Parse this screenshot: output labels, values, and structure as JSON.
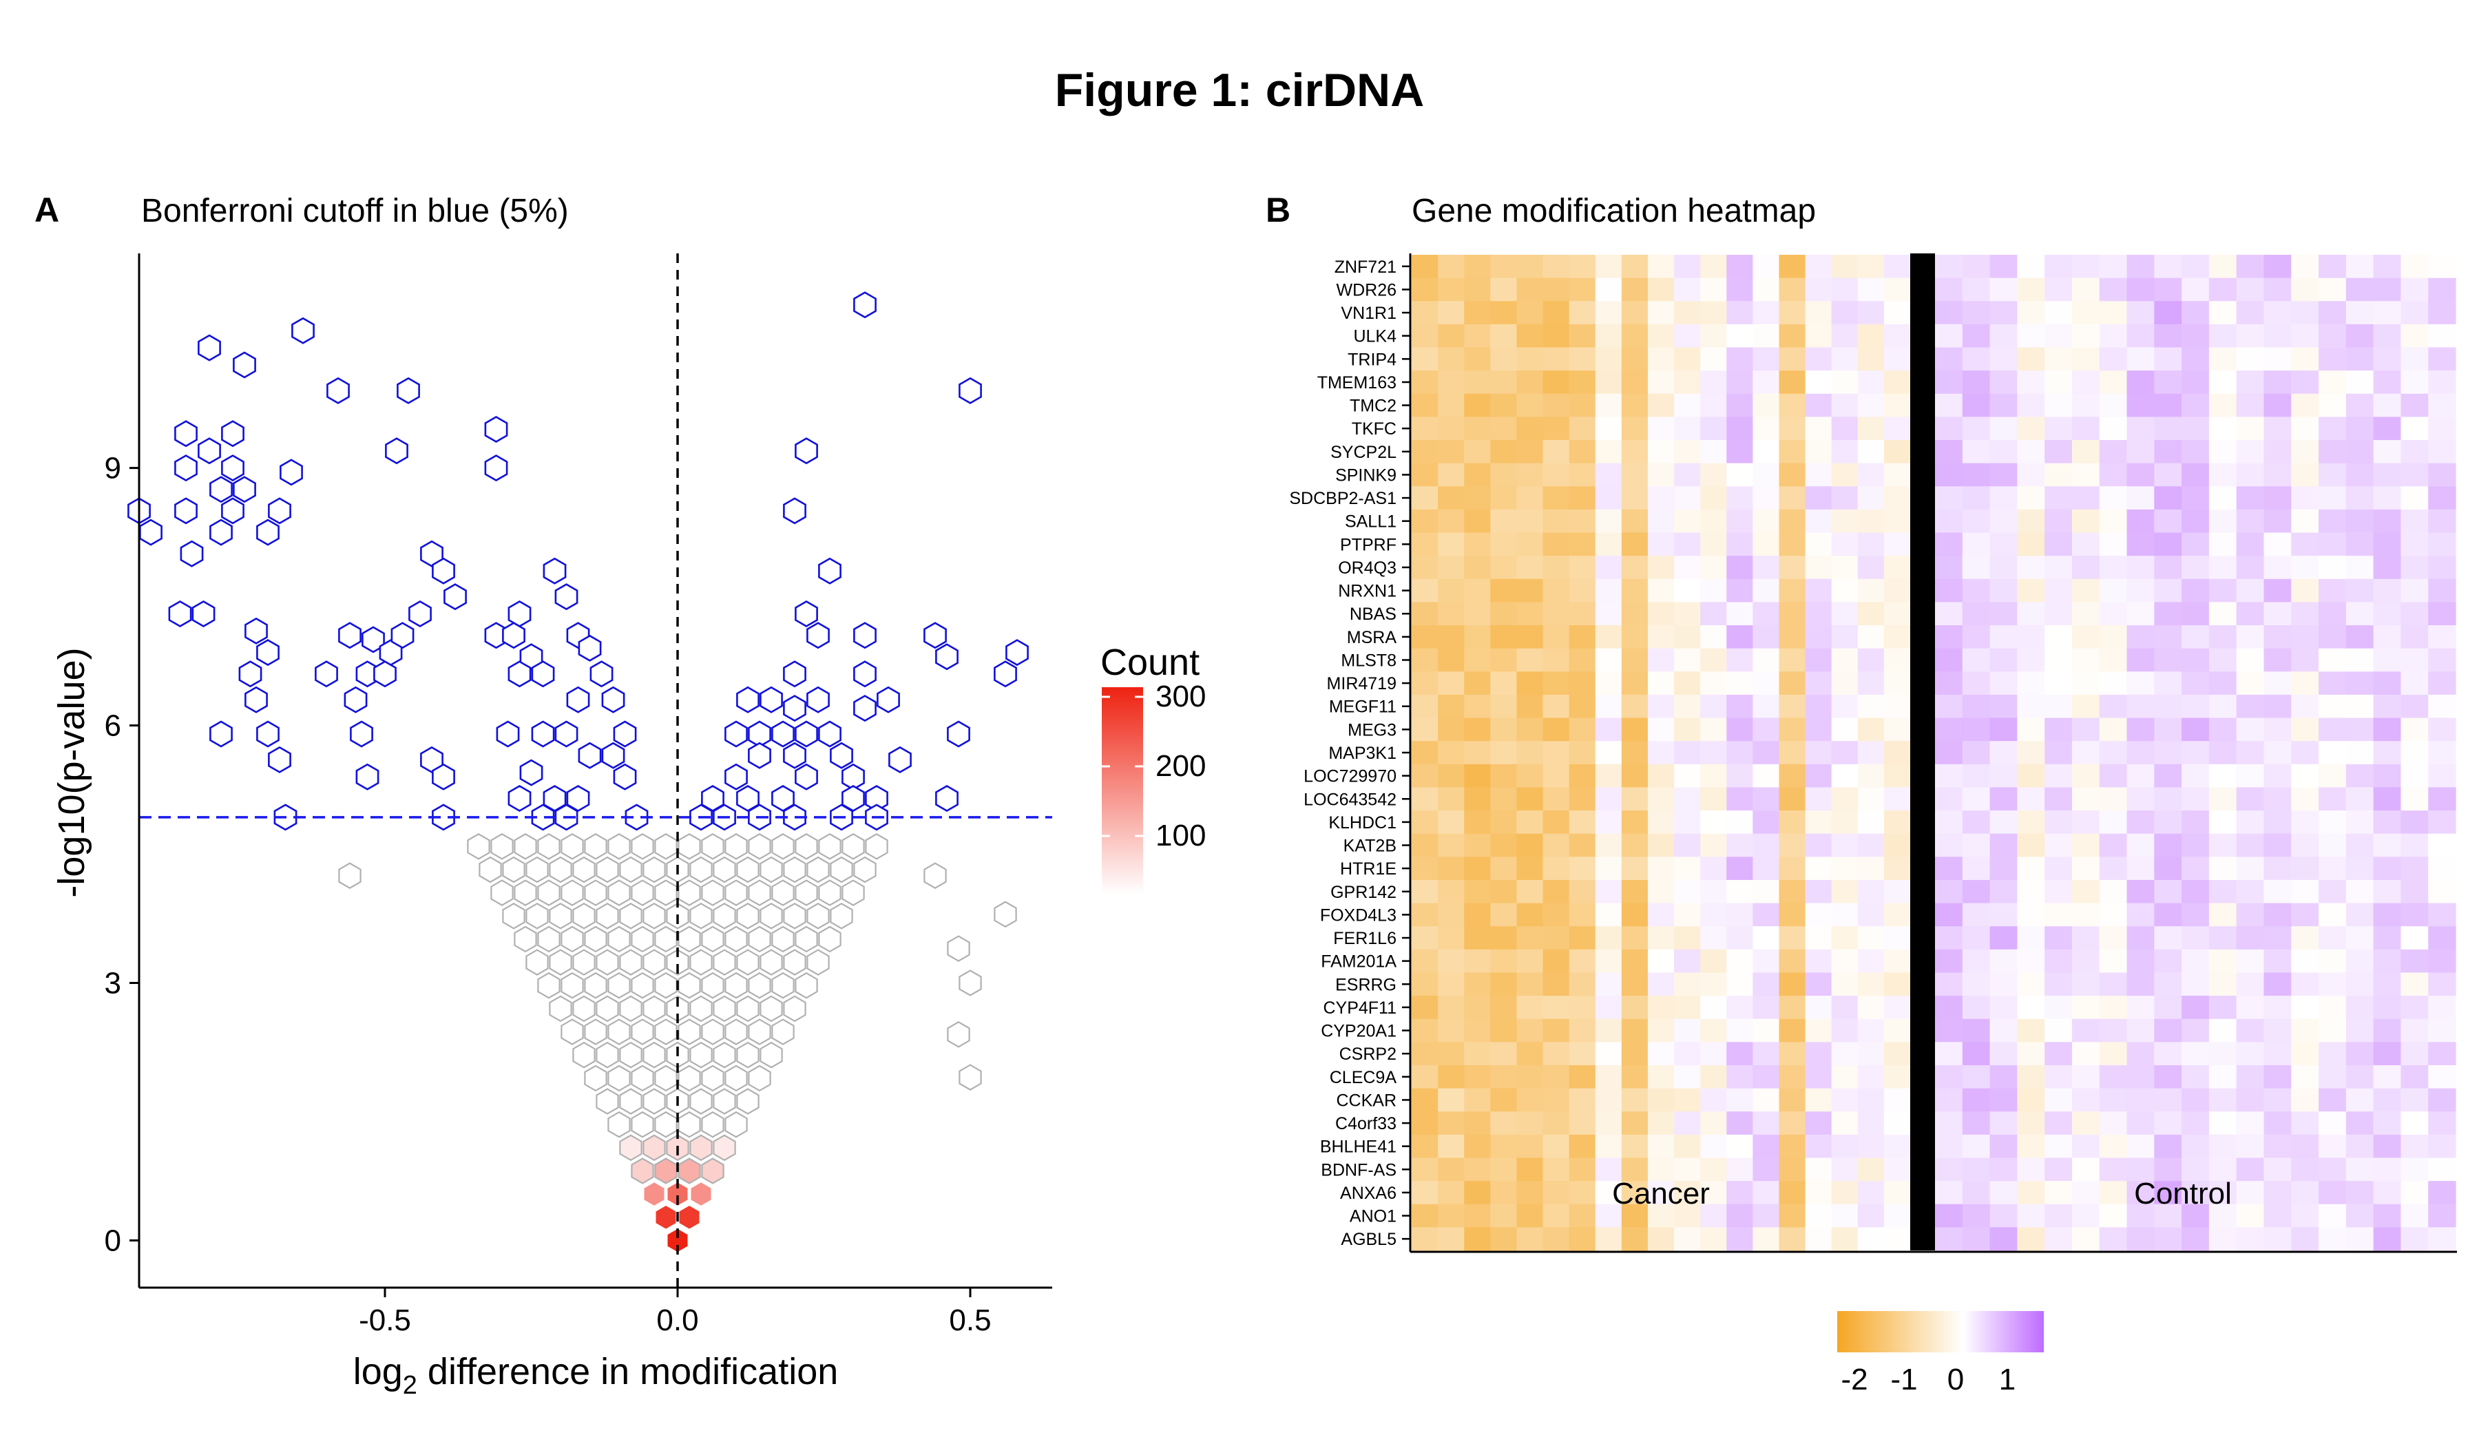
{
  "figure_title": "Figure 1: cirDNA",
  "panel_a": {
    "tag": "A",
    "subtitle": "Bonferroni cutoff in blue (5%)",
    "xlabel_main": "log",
    "xlabel_sub": "2",
    "xlabel_rest": " difference in modification",
    "ylabel": "-log10(p-value)",
    "legend_title": "Count",
    "legend_ticks": [
      "300",
      "200",
      "100"
    ]
  },
  "panel_b": {
    "tag": "B",
    "subtitle": "Gene modification heatmap",
    "group_labels": [
      "Cancer",
      "Control"
    ],
    "colorbar_ticks": [
      "-2",
      "-1",
      "0",
      "1"
    ]
  },
  "colors": {
    "significant": "#1010dd",
    "non_significant": "#b0b0b0",
    "count_high": "#ee2211",
    "count_low": "#ffffff",
    "cutoff_line": "#1a1aee",
    "heat_low": "#f5a623",
    "heat_mid": "#ffffff",
    "heat_high": "#bf6bff",
    "divider": "#000000"
  },
  "chart_data": [
    {
      "type": "scatter",
      "subtype": "hexbin",
      "title": "Bonferroni cutoff in blue (5%)",
      "xlabel": "log2 difference in modification",
      "ylabel": "-log10(p-value)",
      "xlim": [
        -0.92,
        0.64
      ],
      "ylim": [
        -0.55,
        11.5
      ],
      "xticks": [
        -0.5,
        0.0,
        0.5
      ],
      "yticks": [
        0,
        3,
        6,
        9
      ],
      "cutoff_y": 4.93,
      "vline_x": 0.0,
      "grid": false,
      "legend": "right",
      "count_range": [
        1,
        300
      ],
      "significant_points": [
        [
          -0.92,
          8.5
        ],
        [
          -0.9,
          8.25
        ],
        [
          -0.85,
          7.3
        ],
        [
          -0.81,
          7.3
        ],
        [
          -0.83,
          8.0
        ],
        [
          -0.84,
          8.5
        ],
        [
          -0.84,
          9.0
        ],
        [
          -0.84,
          9.4
        ],
        [
          -0.8,
          10.4
        ],
        [
          -0.8,
          9.2
        ],
        [
          -0.78,
          8.75
        ],
        [
          -0.78,
          8.25
        ],
        [
          -0.76,
          8.5
        ],
        [
          -0.76,
          9.0
        ],
        [
          -0.76,
          9.4
        ],
        [
          -0.74,
          8.75
        ],
        [
          -0.74,
          10.2
        ],
        [
          -0.72,
          7.1
        ],
        [
          -0.7,
          8.25
        ],
        [
          -0.68,
          8.5
        ],
        [
          -0.66,
          8.95
        ],
        [
          -0.64,
          10.6
        ],
        [
          -0.58,
          9.9
        ],
        [
          -0.56,
          7.05
        ],
        [
          -0.6,
          6.6
        ],
        [
          -0.55,
          6.3
        ],
        [
          -0.52,
          7.0
        ],
        [
          -0.49,
          6.85
        ],
        [
          -0.48,
          9.2
        ],
        [
          -0.46,
          9.9
        ],
        [
          -0.44,
          7.3
        ],
        [
          -0.42,
          8.0
        ],
        [
          -0.4,
          7.8
        ],
        [
          -0.38,
          7.5
        ],
        [
          -0.42,
          5.6
        ],
        [
          -0.4,
          5.4
        ],
        [
          -0.4,
          4.93
        ],
        [
          -0.31,
          9.45
        ],
        [
          -0.31,
          9.0
        ],
        [
          -0.31,
          7.05
        ],
        [
          -0.29,
          5.9
        ],
        [
          -0.27,
          7.3
        ],
        [
          -0.25,
          6.8
        ],
        [
          -0.23,
          6.6
        ],
        [
          -0.21,
          7.8
        ],
        [
          -0.19,
          7.5
        ],
        [
          -0.17,
          7.05
        ],
        [
          -0.17,
          6.3
        ],
        [
          -0.15,
          6.9
        ],
        [
          -0.13,
          6.6
        ],
        [
          -0.11,
          6.3
        ],
        [
          -0.09,
          5.9
        ],
        [
          -0.11,
          5.65
        ],
        [
          -0.15,
          5.65
        ],
        [
          -0.19,
          5.9
        ],
        [
          -0.23,
          5.9
        ],
        [
          -0.25,
          5.45
        ],
        [
          -0.27,
          5.15
        ],
        [
          -0.21,
          5.15
        ],
        [
          -0.17,
          5.15
        ],
        [
          -0.09,
          5.4
        ],
        [
          -0.07,
          4.93
        ],
        [
          -0.19,
          4.93
        ],
        [
          -0.23,
          4.93
        ],
        [
          -0.73,
          6.6
        ],
        [
          -0.72,
          6.3
        ],
        [
          -0.7,
          5.9
        ],
        [
          -0.68,
          5.6
        ],
        [
          -0.67,
          4.93
        ],
        [
          -0.78,
          5.9
        ],
        [
          -0.54,
          5.9
        ],
        [
          -0.53,
          5.4
        ],
        [
          -0.7,
          6.85
        ],
        [
          -0.53,
          6.6
        ],
        [
          -0.5,
          6.6
        ],
        [
          -0.47,
          7.05
        ],
        [
          -0.28,
          7.05
        ],
        [
          -0.27,
          6.6
        ],
        [
          0.32,
          10.9
        ],
        [
          0.5,
          9.9
        ],
        [
          0.22,
          9.2
        ],
        [
          0.2,
          8.5
        ],
        [
          0.26,
          7.8
        ],
        [
          0.22,
          7.3
        ],
        [
          0.24,
          7.05
        ],
        [
          0.32,
          7.05
        ],
        [
          0.44,
          7.05
        ],
        [
          0.46,
          6.8
        ],
        [
          0.56,
          6.6
        ],
        [
          0.58,
          6.85
        ],
        [
          0.2,
          6.6
        ],
        [
          0.16,
          6.3
        ],
        [
          0.12,
          6.3
        ],
        [
          0.1,
          5.9
        ],
        [
          0.14,
          5.9
        ],
        [
          0.18,
          5.9
        ],
        [
          0.22,
          5.9
        ],
        [
          0.26,
          5.9
        ],
        [
          0.32,
          6.6
        ],
        [
          0.36,
          6.3
        ],
        [
          0.32,
          6.2
        ],
        [
          0.24,
          6.3
        ],
        [
          0.2,
          6.2
        ],
        [
          0.22,
          5.4
        ],
        [
          0.3,
          5.4
        ],
        [
          0.28,
          5.65
        ],
        [
          0.38,
          5.6
        ],
        [
          0.48,
          5.9
        ],
        [
          0.46,
          5.15
        ],
        [
          0.1,
          5.4
        ],
        [
          0.12,
          5.15
        ],
        [
          0.18,
          5.15
        ],
        [
          0.06,
          5.15
        ],
        [
          0.14,
          5.65
        ],
        [
          0.2,
          5.65
        ],
        [
          0.3,
          5.15
        ],
        [
          0.34,
          5.15
        ],
        [
          0.2,
          4.93
        ],
        [
          0.14,
          4.93
        ],
        [
          0.28,
          4.93
        ],
        [
          0.34,
          4.93
        ],
        [
          0.04,
          4.93
        ],
        [
          0.08,
          4.93
        ]
      ],
      "isolated_nonsignificant_points": [
        [
          -0.56,
          4.25
        ],
        [
          0.56,
          3.8
        ],
        [
          0.48,
          3.4
        ],
        [
          0.5,
          3.0
        ],
        [
          0.48,
          2.4
        ],
        [
          0.5,
          1.9
        ],
        [
          0.44,
          4.25
        ]
      ]
    },
    {
      "type": "heatmap",
      "title": "Gene modification heatmap",
      "rows": [
        "ZNF721",
        "WDR26",
        "VN1R1",
        "ULK4",
        "TRIP4",
        "TMEM163",
        "TMC2",
        "TKFC",
        "SYCP2L",
        "SPINK9",
        "SDCBP2-AS1",
        "SALL1",
        "PTPRF",
        "OR4Q3",
        "NRXN1",
        "NBAS",
        "MSRA",
        "MLST8",
        "MIR4719",
        "MEGF11",
        "MEG3",
        "MAP3K1",
        "LOC729970",
        "LOC643542",
        "KLHDC1",
        "KAT2B",
        "HTR1E",
        "GPR142",
        "FOXD4L3",
        "FER1L6",
        "FAM201A",
        "ESRRG",
        "CYP4F11",
        "CYP20A1",
        "CSRP2",
        "CLEC9A",
        "CCKAR",
        "C4orf33",
        "BHLHE41",
        "BDNF-AS",
        "ANXA6",
        "ANO1",
        "AGBL5"
      ],
      "groups": [
        {
          "name": "Cancer",
          "n_columns": 19
        },
        {
          "name": "Control",
          "n_columns": 19
        }
      ],
      "color_scale": {
        "min": -2.5,
        "mid": 0,
        "max": 1.6,
        "ticks": [
          -2,
          -1,
          0,
          1
        ]
      }
    }
  ]
}
